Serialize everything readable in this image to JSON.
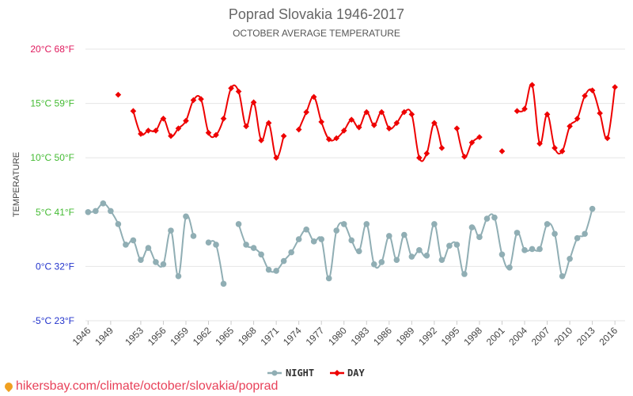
{
  "chart_data": {
    "type": "line",
    "title": "Poprad Slovakia 1946-2017",
    "subtitle": "OCTOBER AVERAGE TEMPERATURE",
    "ylabel": "TEMPERATURE",
    "ylim": [
      -5,
      20
    ],
    "y_ticks": [
      {
        "value": 20,
        "label": "20°C 68°F",
        "color": "#e0195d"
      },
      {
        "value": 15,
        "label": "15°C 59°F",
        "color": "#44bb33"
      },
      {
        "value": 10,
        "label": "10°C 50°F",
        "color": "#44bb33"
      },
      {
        "value": 5,
        "label": "5°C 41°F",
        "color": "#44bb33"
      },
      {
        "value": 0,
        "label": "0°C 32°F",
        "color": "#2233cc"
      },
      {
        "value": -5,
        "label": "-5°C 23°F",
        "color": "#2233cc"
      }
    ],
    "x_tick_labels": [
      "1946",
      "1949",
      "1953",
      "1956",
      "1959",
      "1962",
      "1965",
      "1968",
      "1971",
      "1974",
      "1977",
      "1980",
      "1983",
      "1986",
      "1989",
      "1992",
      "1995",
      "1998",
      "2001",
      "2004",
      "2007",
      "2010",
      "2013",
      "2016"
    ],
    "x": [
      1946,
      1947,
      1948,
      1949,
      1950,
      1951,
      1952,
      1953,
      1954,
      1955,
      1956,
      1957,
      1958,
      1959,
      1960,
      1961,
      1962,
      1963,
      1964,
      1965,
      1966,
      1967,
      1968,
      1969,
      1970,
      1971,
      1972,
      1973,
      1974,
      1975,
      1976,
      1977,
      1978,
      1979,
      1980,
      1981,
      1982,
      1983,
      1984,
      1985,
      1986,
      1987,
      1988,
      1989,
      1990,
      1991,
      1992,
      1993,
      1994,
      1995,
      1996,
      1997,
      1998,
      1999,
      2000,
      2001,
      2002,
      2003,
      2004,
      2005,
      2006,
      2007,
      2008,
      2009,
      2010,
      2011,
      2012,
      2013,
      2014,
      2015,
      2016,
      2017
    ],
    "series": [
      {
        "name": "NIGHT",
        "color": "#90aeb4",
        "marker": "circle",
        "values": [
          5.0,
          5.1,
          5.8,
          5.1,
          3.9,
          2.0,
          2.4,
          0.6,
          1.7,
          0.4,
          0.2,
          3.3,
          -0.9,
          4.6,
          2.8,
          null,
          2.2,
          2.0,
          -1.6,
          null,
          3.9,
          2.0,
          1.7,
          1.1,
          -0.3,
          -0.4,
          0.5,
          1.3,
          2.5,
          3.4,
          2.3,
          2.5,
          -1.1,
          3.3,
          3.9,
          2.4,
          1.4,
          3.9,
          0.2,
          0.4,
          2.8,
          0.6,
          2.9,
          0.9,
          1.5,
          1.0,
          3.9,
          0.6,
          1.9,
          2.0,
          -0.7,
          3.6,
          2.7,
          4.4,
          4.5,
          1.1,
          -0.1,
          3.1,
          1.5,
          1.6,
          1.6,
          3.9,
          3.0,
          -0.9,
          0.7,
          2.6,
          3.0,
          5.3,
          null,
          null,
          null,
          null
        ]
      },
      {
        "name": "DAY",
        "color": "#ee0000",
        "marker": "diamond",
        "values": [
          null,
          null,
          null,
          null,
          15.8,
          null,
          14.3,
          12.2,
          12.5,
          12.5,
          13.6,
          12.0,
          12.7,
          13.4,
          15.3,
          15.4,
          12.3,
          12.1,
          13.6,
          16.4,
          16.1,
          12.9,
          15.1,
          11.6,
          13.2,
          10.0,
          12.0,
          null,
          12.6,
          14.2,
          15.6,
          13.3,
          11.7,
          11.8,
          12.5,
          13.5,
          12.8,
          14.2,
          13.0,
          14.2,
          12.7,
          13.2,
          14.2,
          14.0,
          10.0,
          10.4,
          13.2,
          10.9,
          null,
          12.7,
          10.1,
          11.4,
          11.9,
          null,
          null,
          10.6,
          null,
          14.3,
          14.5,
          16.7,
          11.3,
          14.0,
          10.9,
          10.6,
          12.9,
          13.6,
          15.7,
          16.2,
          14.1,
          11.8,
          16.5,
          null
        ]
      }
    ],
    "grid": true,
    "legend_position": "bottom-center"
  },
  "source_text": "hikersbay.com/climate/october/slovakia/poprad"
}
